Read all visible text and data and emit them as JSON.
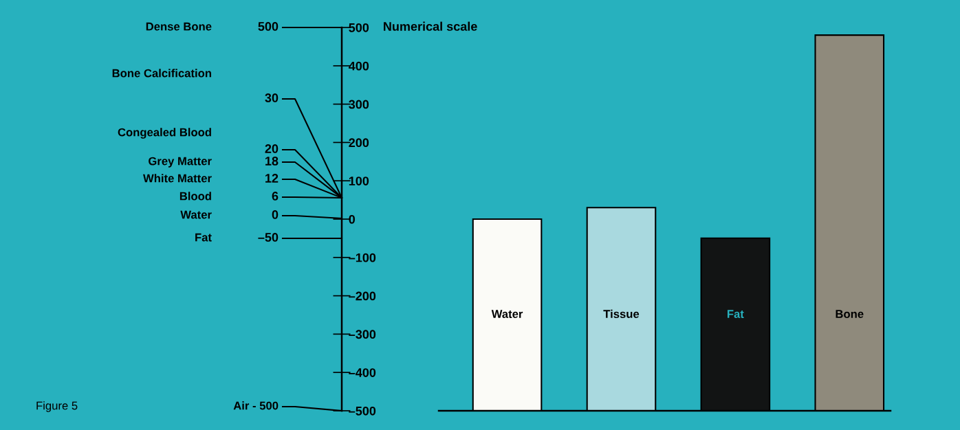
{
  "chart_data": {
    "type": "bar",
    "ylabel": "Numerical scale",
    "categories": [
      "Water",
      "Tissue",
      "Fat",
      "Bone"
    ],
    "base": [
      -500,
      -500,
      -500,
      -500
    ],
    "values": [
      500,
      530,
      450,
      980
    ],
    "colors": [
      "#fbfbf7",
      "#a9d9df",
      "#121414",
      "#8f8a7c"
    ],
    "ylim": [
      -500,
      500
    ],
    "yticks": [
      {
        "value": -500,
        "label": "–500"
      },
      {
        "value": -400,
        "label": "–400"
      },
      {
        "value": -300,
        "label": "–300"
      },
      {
        "value": -200,
        "label": "–200"
      },
      {
        "value": -100,
        "label": "–100"
      },
      0,
      100,
      200,
      300,
      400,
      500
    ],
    "grid": false,
    "legend": false,
    "annotations": [
      "500",
      "30",
      "20",
      "18",
      "12",
      "6",
      "0",
      "–50",
      "Air - 500",
      "Dense Bone",
      "Bone Calcification",
      "Congealed Blood",
      "Grey Matter",
      "White Matter",
      "Blood",
      "Water",
      "Fat",
      "Figure 5"
    ]
  }
}
